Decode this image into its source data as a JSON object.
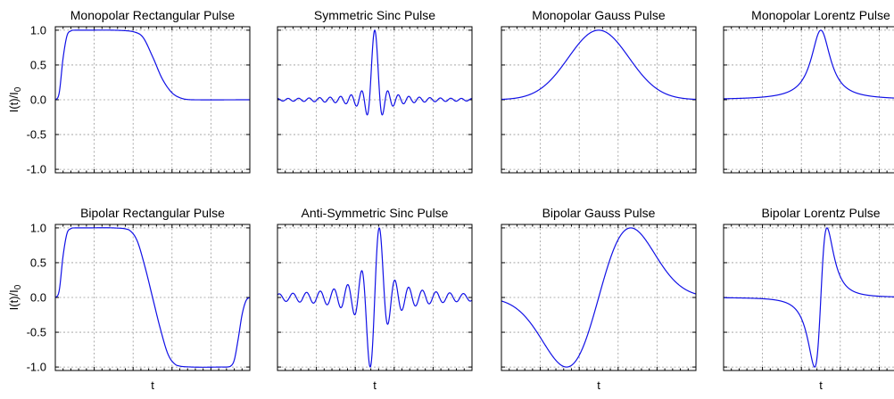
{
  "chart_data": [
    {
      "type": "line",
      "title": "Monopolar Rectangular Pulse",
      "ylabel": "I(t)/I0",
      "xlabel": "",
      "ylim": [
        -1.05,
        1.05
      ],
      "ytick_labels": [
        "1.0",
        "0.5",
        "0.0",
        "-0.5",
        "-1.0"
      ],
      "grid": true,
      "series": [
        {
          "x": [
            0,
            0.02,
            0.04,
            0.06,
            0.08,
            0.1,
            0.15,
            0.3,
            0.4,
            0.45,
            0.5,
            0.55,
            0.6,
            0.65,
            0.7,
            1.0
          ],
          "y": [
            0,
            0.1,
            0.6,
            0.92,
            0.99,
            1.0,
            1.0,
            1.0,
            0.98,
            0.9,
            0.62,
            0.3,
            0.1,
            0.02,
            0,
            0
          ]
        }
      ]
    },
    {
      "type": "line",
      "title": "Symmetric Sinc Pulse",
      "xlabel": "",
      "ylim": [
        -1.05,
        1.05
      ],
      "grid": true,
      "function": "sinc",
      "center": 0.5,
      "zero_spacing": 0.027
    },
    {
      "type": "line",
      "title": "Monopolar Gauss Pulse",
      "xlabel": "",
      "ylim": [
        -1.05,
        1.05
      ],
      "grid": true,
      "function": "gauss",
      "center": 0.5,
      "width": 0.22
    },
    {
      "type": "line",
      "title": "Monopolar Lorentz Pulse",
      "xlabel": "",
      "ylim": [
        -1.05,
        1.05
      ],
      "grid": true,
      "function": "lorentz",
      "center": 0.5,
      "width": 0.06
    },
    {
      "type": "line",
      "title": "Bipolar Rectangular Pulse",
      "ylabel": "I(t)/I0",
      "xlabel": "t",
      "ylim": [
        -1.05,
        1.05
      ],
      "ytick_labels": [
        "1.0",
        "0.5",
        "0.0",
        "-0.5",
        "-1.0"
      ],
      "grid": true,
      "series": [
        {
          "x": [
            0,
            0.02,
            0.04,
            0.06,
            0.08,
            0.1,
            0.15,
            0.3,
            0.38,
            0.42,
            0.46,
            0.5,
            0.54,
            0.58,
            0.62,
            0.7,
            0.85,
            0.9,
            0.92,
            0.94,
            0.96,
            0.98,
            1.0
          ],
          "y": [
            0,
            0.1,
            0.6,
            0.92,
            0.99,
            1.0,
            1.0,
            1.0,
            0.97,
            0.82,
            0.45,
            0.0,
            -0.45,
            -0.82,
            -0.97,
            -1.0,
            -1.0,
            -0.99,
            -0.9,
            -0.6,
            -0.25,
            -0.05,
            0
          ]
        }
      ]
    },
    {
      "type": "line",
      "title": "Anti-Symmetric Sinc Pulse",
      "xlabel": "t",
      "ylim": [
        -1.05,
        1.05
      ],
      "grid": true,
      "function": "antisinc",
      "center": 0.5,
      "zero_spacing": 0.027
    },
    {
      "type": "line",
      "title": "Bipolar Gauss Pulse",
      "xlabel": "t",
      "ylim": [
        -1.05,
        1.05
      ],
      "grid": true,
      "function": "bigauss",
      "center": 0.5,
      "width": 0.165
    },
    {
      "type": "line",
      "title": "Bipolar Lorentz Pulse",
      "xlabel": "t",
      "ylim": [
        -1.05,
        1.05
      ],
      "grid": true,
      "function": "bilorentz",
      "center": 0.5,
      "width": 0.055
    }
  ]
}
